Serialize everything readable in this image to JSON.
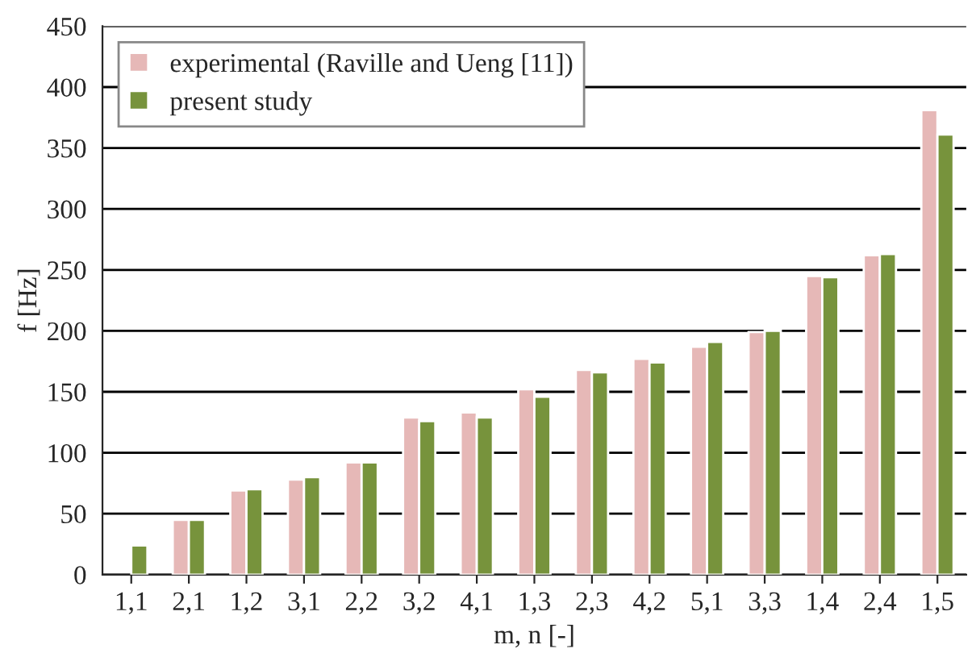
{
  "chart_data": {
    "type": "bar",
    "xlabel": "m, n [-]",
    "ylabel": "f [Hz]",
    "categories": [
      "1,1",
      "2,1",
      "1,2",
      "3,1",
      "2,2",
      "3,2",
      "4,1",
      "1,3",
      "2,3",
      "4,2",
      "5,1",
      "3,3",
      "1,4",
      "2,4",
      "1,5"
    ],
    "series": [
      {
        "name": "experimental (Raville and Ueng [11])",
        "color": "#e6b8b7",
        "values": [
          null,
          45,
          69,
          78,
          92,
          129,
          133,
          152,
          168,
          177,
          187,
          199,
          245,
          262,
          381
        ]
      },
      {
        "name": "present study",
        "color": "#77933c",
        "values": [
          24,
          45,
          70,
          80,
          92,
          126,
          129,
          146,
          166,
          174,
          191,
          200,
          244,
          263,
          361
        ]
      }
    ],
    "ylim": [
      0,
      450
    ],
    "yticks": [
      0,
      50,
      100,
      150,
      200,
      250,
      300,
      350,
      400,
      450
    ],
    "grid": "y",
    "legend": "top left"
  }
}
